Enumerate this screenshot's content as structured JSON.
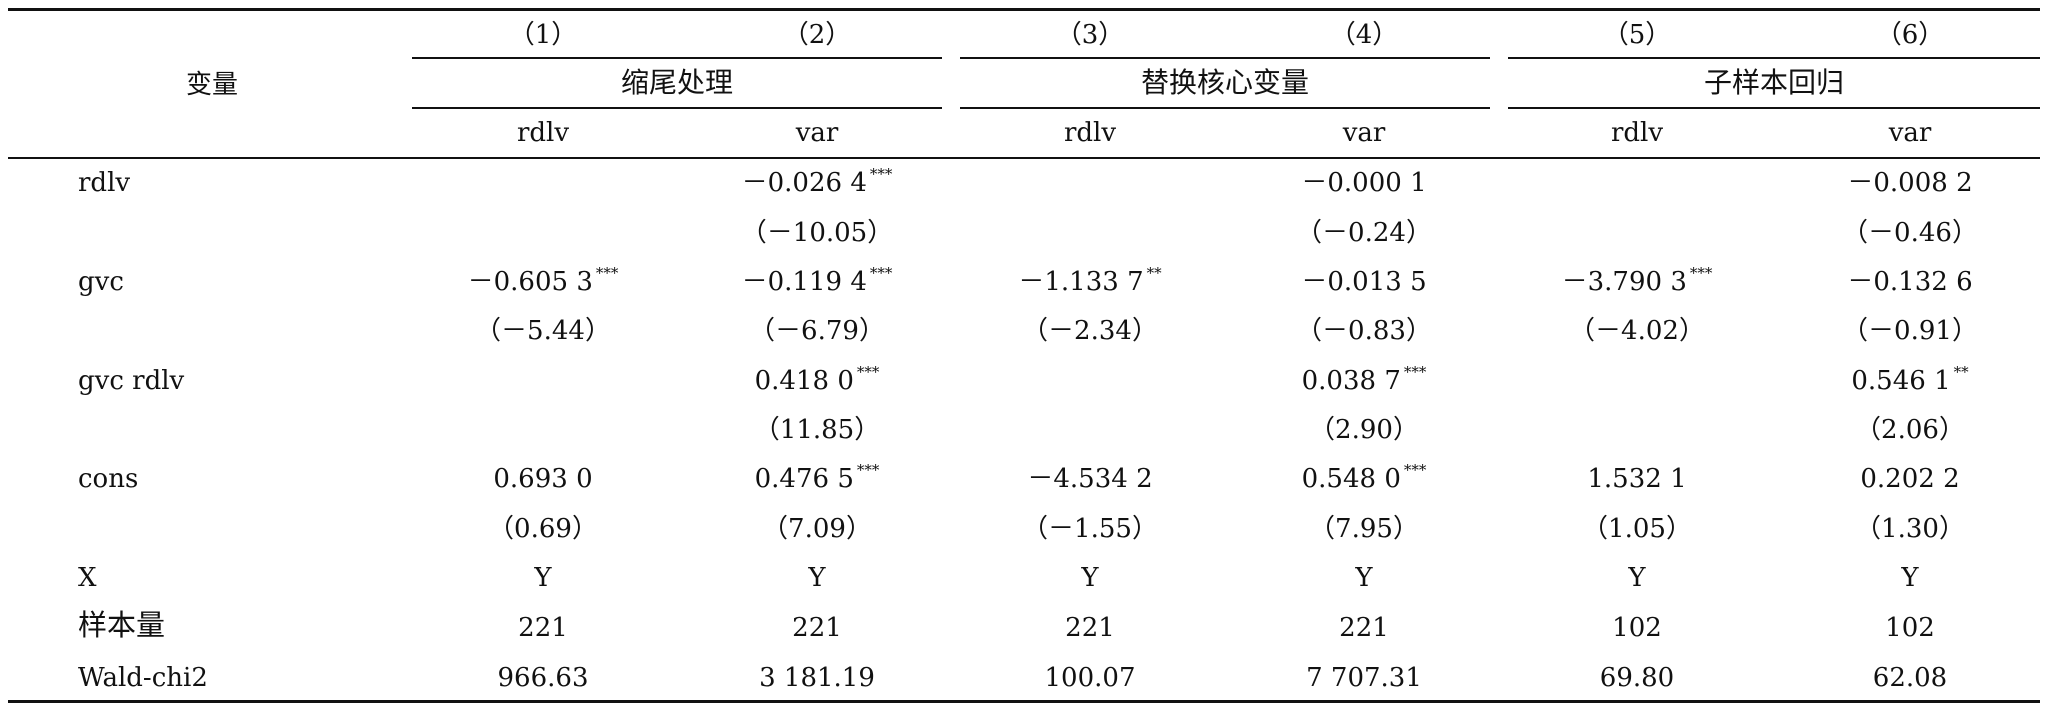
{
  "header": {
    "variable_label": "变量",
    "col_numbers": [
      "（1）",
      "（2）",
      "（3）",
      "（4）",
      "（5）",
      "（6）"
    ],
    "groups": [
      "缩尾处理",
      "替换核心变量",
      "子样本回归"
    ],
    "col_vars": [
      "rdlv",
      "var",
      "rdlv",
      "var",
      "rdlv",
      "var"
    ]
  },
  "rows": [
    {
      "label": "rdlv",
      "cells": [
        "",
        "－0.026 4",
        "",
        "－0.000 1",
        "",
        "－0.008 2"
      ],
      "stars": [
        "",
        "***",
        "",
        "",
        "",
        ""
      ]
    },
    {
      "label": "",
      "cells": [
        "",
        "（－10.05）",
        "",
        "（－0.24）",
        "",
        "（－0.46）"
      ],
      "stars": [
        "",
        "",
        "",
        "",
        "",
        ""
      ]
    },
    {
      "label": "gvc",
      "cells": [
        "－0.605 3",
        "－0.119 4",
        "－1.133 7",
        "－0.013 5",
        "－3.790 3",
        "－0.132 6"
      ],
      "stars": [
        "***",
        "***",
        "**",
        "",
        "***",
        ""
      ]
    },
    {
      "label": "",
      "cells": [
        "（－5.44）",
        "（－6.79）",
        "（－2.34）",
        "（－0.83）",
        "（－4.02）",
        "（－0.91）"
      ],
      "stars": [
        "",
        "",
        "",
        "",
        "",
        ""
      ]
    },
    {
      "label": "gvc rdlv",
      "cells": [
        "",
        "0.418 0",
        "",
        "0.038 7",
        "",
        "0.546 1"
      ],
      "stars": [
        "",
        "***",
        "",
        "***",
        "",
        "**"
      ]
    },
    {
      "label": "",
      "cells": [
        "",
        "（11.85）",
        "",
        "（2.90）",
        "",
        "（2.06）"
      ],
      "stars": [
        "",
        "",
        "",
        "",
        "",
        ""
      ]
    },
    {
      "label": "cons",
      "cells": [
        "0.693 0",
        "0.476 5",
        "－4.534 2",
        "0.548 0",
        "1.532 1",
        "0.202 2"
      ],
      "stars": [
        "",
        "***",
        "",
        "***",
        "",
        ""
      ]
    },
    {
      "label": "",
      "cells": [
        "（0.69）",
        "（7.09）",
        "（－1.55）",
        "（7.95）",
        "（1.05）",
        "（1.30）"
      ],
      "stars": [
        "",
        "",
        "",
        "",
        "",
        ""
      ]
    },
    {
      "label": "X",
      "cells": [
        "Y",
        "Y",
        "Y",
        "Y",
        "Y",
        "Y"
      ],
      "stars": [
        "",
        "",
        "",
        "",
        "",
        ""
      ]
    },
    {
      "label": "样本量",
      "cells": [
        "221",
        "221",
        "221",
        "221",
        "102",
        "102"
      ],
      "stars": [
        "",
        "",
        "",
        "",
        "",
        ""
      ]
    },
    {
      "label": "Wald-chi2",
      "cells": [
        "966.63",
        "3 181.19",
        "100.07",
        "7 707.31",
        "69.80",
        "62.08"
      ],
      "stars": [
        "",
        "",
        "",
        "",
        "",
        ""
      ]
    }
  ]
}
